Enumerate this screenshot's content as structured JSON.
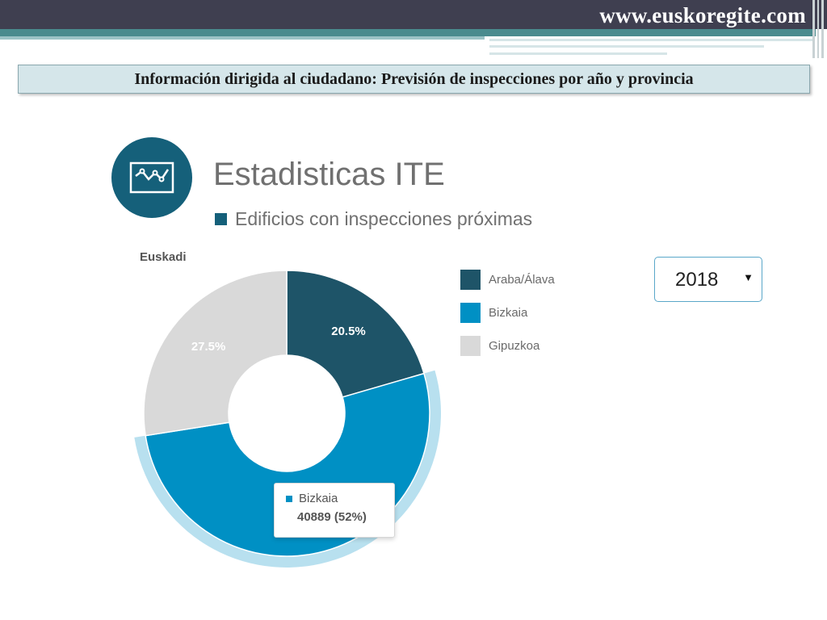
{
  "header": {
    "site_url": "www.euskoregite.com",
    "banner_text": "Información dirigida al ciudadano: Previsión de inspecciones por año y provincia"
  },
  "widget": {
    "icon": "line-chart-icon",
    "year_selected": "2018",
    "region": "Euskadi"
  },
  "tooltip": {
    "series": "Bizkaia",
    "value_text": "40889 (52%)"
  },
  "chart_data": {
    "type": "pie",
    "variant": "donut",
    "title": "Estadisticas ITE",
    "series_name": "Edificios con inspecciones próximas",
    "subtitle": "Euskadi",
    "slices": [
      {
        "name": "Araba/Álava",
        "percent": 20.5,
        "label": "20.5%",
        "color": "#1e5468"
      },
      {
        "name": "Bizkaia",
        "percent": 52,
        "value": 40889,
        "label": "",
        "color": "#0090c4",
        "highlighted": true
      },
      {
        "name": "Gipuzkoa",
        "percent": 27.5,
        "label": "27.5%",
        "color": "#d9d9d9"
      }
    ],
    "legend_position": "right"
  }
}
